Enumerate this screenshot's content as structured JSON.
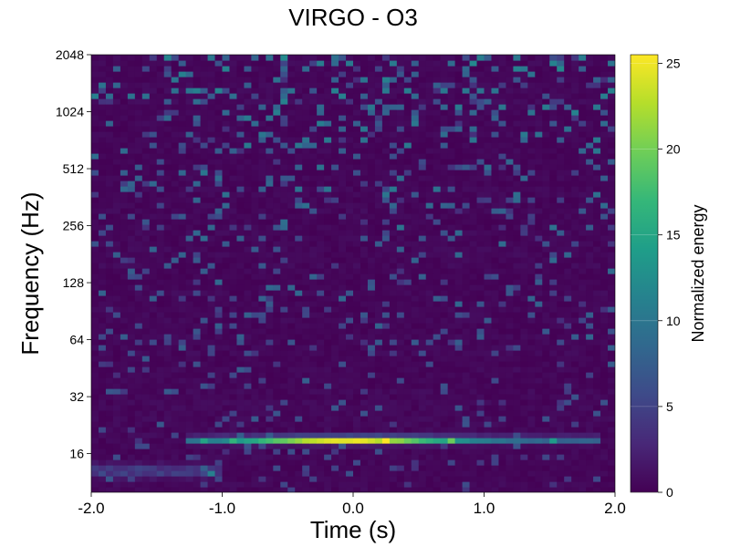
{
  "chart_data": {
    "type": "heatmap",
    "title": "VIRGO - O3",
    "xlabel": "Time (s)",
    "ylabel": "Frequency (Hz)",
    "xlim": [
      -2.0,
      2.0
    ],
    "ylim": [
      10,
      2048
    ],
    "yscale": "log2",
    "xticks": [
      -2.0,
      -1.0,
      0.0,
      1.0,
      2.0
    ],
    "xtick_labels": [
      "-2.0",
      "-1.0",
      "0.0",
      "1.0",
      "2.0"
    ],
    "yticks": [
      16,
      32,
      64,
      128,
      256,
      512,
      1024,
      2048
    ],
    "ytick_labels": [
      "16",
      "32",
      "64",
      "128",
      "256",
      "512",
      "1024",
      "2048"
    ],
    "colorbar": {
      "label": "Normalized energy",
      "colormap": "viridis",
      "range": [
        0,
        25.5
      ],
      "ticks": [
        0,
        5,
        10,
        15,
        20,
        25
      ],
      "tick_labels": [
        "0",
        "5",
        "10",
        "15",
        "20",
        "25"
      ]
    },
    "features": [
      {
        "description": "bright narrow horizontal band",
        "frequency_hz": 19,
        "time_range_s": [
          -1.3,
          1.9
        ],
        "peak_time_s": -0.05,
        "peak_energy": 25.5
      },
      {
        "description": "weak band",
        "frequency_hz": 13,
        "time_range_s": [
          -2.0,
          -1.0
        ],
        "peak_energy": 6
      }
    ],
    "background_energy": "0-3 noise with sparse speckles up to ~10 at high frequency",
    "grid": false
  }
}
